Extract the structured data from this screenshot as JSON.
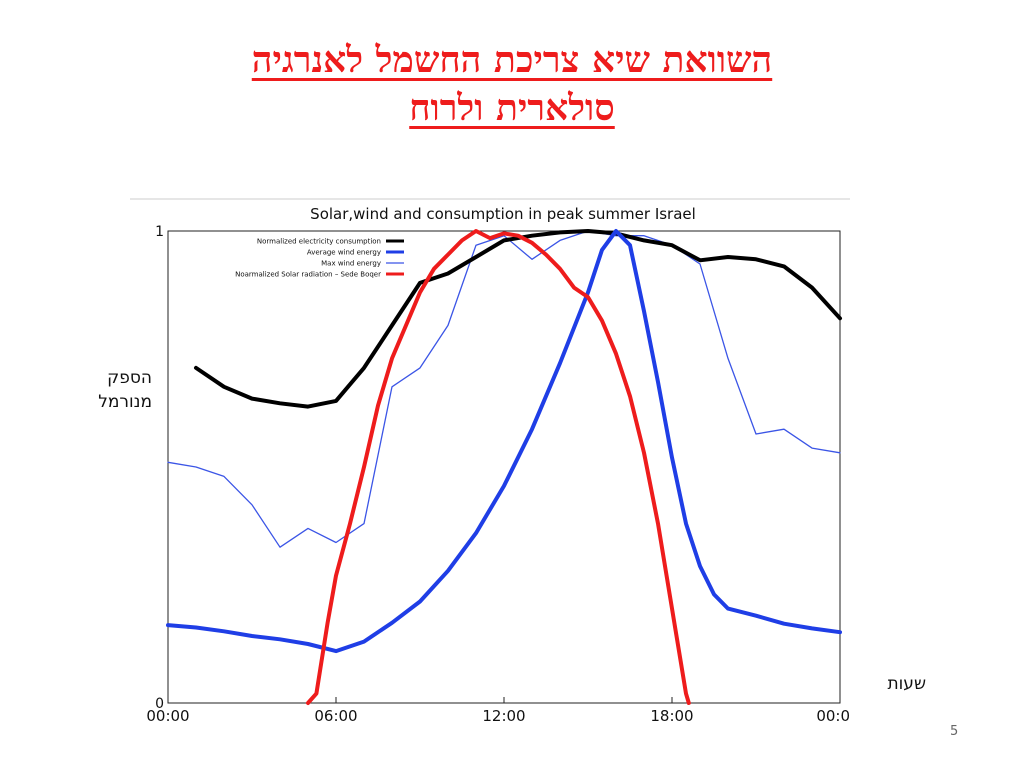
{
  "slide": {
    "title_line1": "השוואת שיא צריכת החשמל לאנרגיה",
    "title_line2": "סולארית ולרוח",
    "ylabel": [
      "הספק",
      "מנורמל"
    ],
    "xlabel": "שעות",
    "page_number": "5"
  },
  "chart_data": {
    "type": "line",
    "title": "Solar,wind and consumption in peak summer Israel",
    "xlim": [
      0,
      24
    ],
    "ylim": [
      0,
      1
    ],
    "xticks": [
      0,
      6,
      12,
      18,
      24
    ],
    "xtick_labels": [
      "00:00",
      "06:00",
      "12:00",
      "18:00",
      "00:0"
    ],
    "yticks": [
      0,
      1
    ],
    "ytick_labels": [
      "0",
      "1"
    ],
    "legend_position": "top-left",
    "grid": false,
    "series": [
      {
        "name": "Normalized electricity consumption",
        "color": "#000000",
        "width": 4,
        "points": [
          [
            1,
            0.71
          ],
          [
            2,
            0.67
          ],
          [
            3,
            0.645
          ],
          [
            4,
            0.635
          ],
          [
            5,
            0.628
          ],
          [
            6,
            0.64
          ],
          [
            7,
            0.71
          ],
          [
            8,
            0.8
          ],
          [
            9,
            0.89
          ],
          [
            10,
            0.91
          ],
          [
            11,
            0.945
          ],
          [
            12,
            0.98
          ],
          [
            13,
            0.99
          ],
          [
            14,
            0.997
          ],
          [
            15,
            1.0
          ],
          [
            16,
            0.995
          ],
          [
            17,
            0.98
          ],
          [
            18,
            0.97
          ],
          [
            19,
            0.938
          ],
          [
            20,
            0.945
          ],
          [
            21,
            0.94
          ],
          [
            22,
            0.925
          ],
          [
            23,
            0.88
          ],
          [
            24,
            0.815
          ]
        ]
      },
      {
        "name": "Average wind energy",
        "color": "#1f3ee6",
        "width": 4,
        "points": [
          [
            0,
            0.165
          ],
          [
            1,
            0.16
          ],
          [
            2,
            0.152
          ],
          [
            3,
            0.142
          ],
          [
            4,
            0.135
          ],
          [
            5,
            0.125
          ],
          [
            6,
            0.11
          ],
          [
            7,
            0.13
          ],
          [
            8,
            0.17
          ],
          [
            9,
            0.215
          ],
          [
            10,
            0.28
          ],
          [
            11,
            0.36
          ],
          [
            12,
            0.46
          ],
          [
            13,
            0.58
          ],
          [
            14,
            0.72
          ],
          [
            15,
            0.87
          ],
          [
            15.5,
            0.96
          ],
          [
            16,
            1.0
          ],
          [
            16.5,
            0.97
          ],
          [
            17,
            0.83
          ],
          [
            17.5,
            0.68
          ],
          [
            18,
            0.52
          ],
          [
            18.5,
            0.38
          ],
          [
            19,
            0.29
          ],
          [
            19.5,
            0.23
          ],
          [
            20,
            0.2
          ],
          [
            21,
            0.185
          ],
          [
            22,
            0.168
          ],
          [
            23,
            0.158
          ],
          [
            24,
            0.15
          ]
        ]
      },
      {
        "name": "Max wind energy",
        "color": "#3b55e6",
        "width": 1.3,
        "points": [
          [
            0,
            0.51
          ],
          [
            1,
            0.5
          ],
          [
            2,
            0.48
          ],
          [
            3,
            0.42
          ],
          [
            4,
            0.33
          ],
          [
            5,
            0.37
          ],
          [
            6,
            0.34
          ],
          [
            7,
            0.38
          ],
          [
            8,
            0.67
          ],
          [
            9,
            0.71
          ],
          [
            10,
            0.8
          ],
          [
            11,
            0.97
          ],
          [
            12,
            0.99
          ],
          [
            13,
            0.94
          ],
          [
            14,
            0.98
          ],
          [
            15,
            1.0
          ],
          [
            16,
            0.99
          ],
          [
            17,
            0.99
          ],
          [
            18,
            0.97
          ],
          [
            19,
            0.93
          ],
          [
            20,
            0.73
          ],
          [
            21,
            0.57
          ],
          [
            22,
            0.58
          ],
          [
            23,
            0.54
          ],
          [
            24,
            0.53
          ]
        ]
      },
      {
        "name": "Noarmalized Solar radiation – Sede Boqer",
        "color": "#ee1c1c",
        "width": 4,
        "points": [
          [
            5,
            0
          ],
          [
            5.3,
            0.02
          ],
          [
            5.7,
            0.17
          ],
          [
            6,
            0.27
          ],
          [
            6.5,
            0.38
          ],
          [
            7,
            0.5
          ],
          [
            7.5,
            0.63
          ],
          [
            8,
            0.73
          ],
          [
            8.5,
            0.8
          ],
          [
            9,
            0.87
          ],
          [
            9.5,
            0.92
          ],
          [
            10,
            0.95
          ],
          [
            10.5,
            0.98
          ],
          [
            11,
            1.0
          ],
          [
            11.5,
            0.985
          ],
          [
            12,
            0.995
          ],
          [
            12.5,
            0.99
          ],
          [
            13,
            0.975
          ],
          [
            13.5,
            0.95
          ],
          [
            14,
            0.92
          ],
          [
            14.5,
            0.88
          ],
          [
            15,
            0.86
          ],
          [
            15.5,
            0.81
          ],
          [
            16,
            0.74
          ],
          [
            16.5,
            0.65
          ],
          [
            17,
            0.53
          ],
          [
            17.5,
            0.38
          ],
          [
            18,
            0.2
          ],
          [
            18.5,
            0.02
          ],
          [
            18.6,
            0
          ]
        ]
      }
    ]
  }
}
